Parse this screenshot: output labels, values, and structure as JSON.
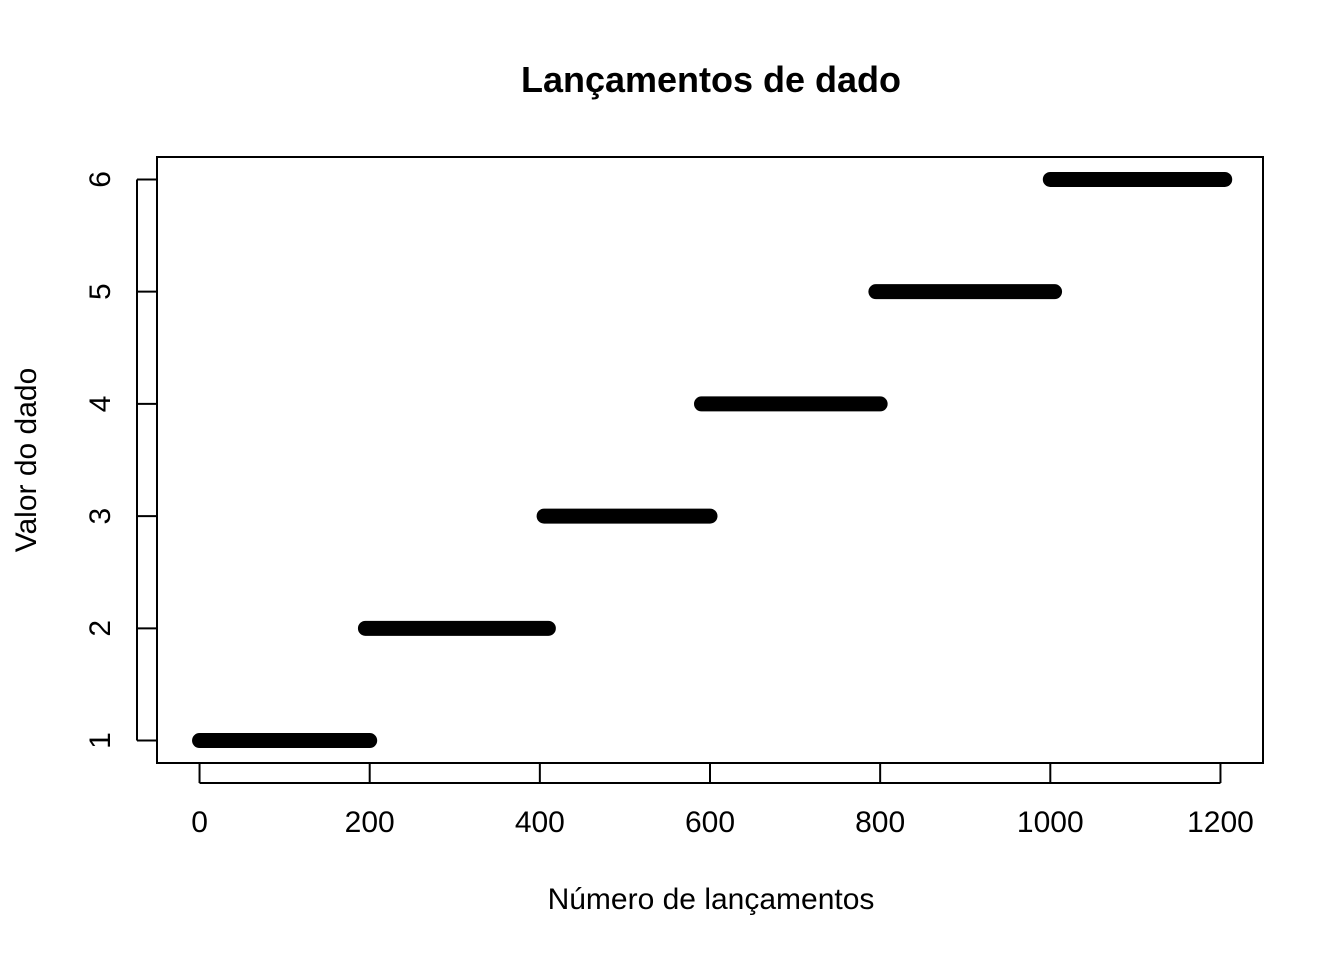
{
  "chart_data": {
    "type": "scatter",
    "title": "Lançamentos de dado",
    "xlabel": "Número de lançamentos",
    "ylabel": "Valor do dado",
    "xlim": [
      -50,
      1250
    ],
    "ylim": [
      0.8,
      6.2
    ],
    "xticks": [
      "0",
      "200",
      "400",
      "600",
      "800",
      "1000",
      "1200"
    ],
    "yticks": [
      "1",
      "2",
      "3",
      "4",
      "5",
      "6"
    ],
    "grid": false,
    "legend": "none",
    "color": "#000000",
    "series": [
      {
        "segments": [
          {
            "y": 1,
            "x_start": 0,
            "x_end": 200
          },
          {
            "y": 2,
            "x_start": 195,
            "x_end": 410
          },
          {
            "y": 3,
            "x_start": 405,
            "x_end": 600
          },
          {
            "y": 4,
            "x_start": 590,
            "x_end": 800
          },
          {
            "y": 5,
            "x_start": 795,
            "x_end": 1005
          },
          {
            "y": 6,
            "x_start": 1000,
            "x_end": 1205
          }
        ]
      }
    ]
  }
}
